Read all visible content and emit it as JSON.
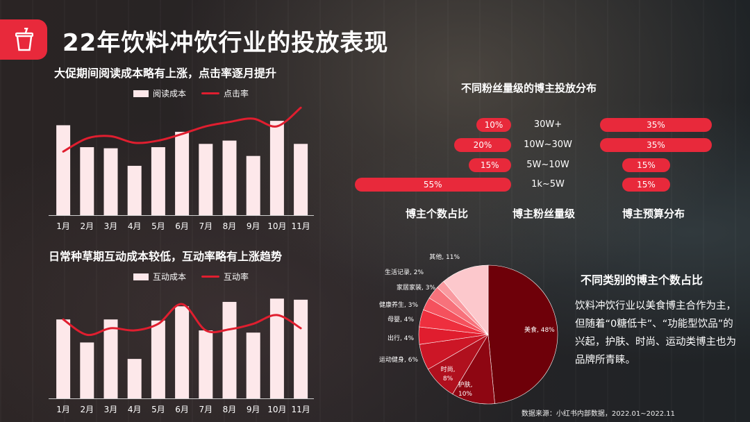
{
  "title": "22年饮料冲饮行业的投放表现",
  "top_chart_title": "大促期间阅读成本略有上涨，点击率逐月提升",
  "bottom_chart_title": "日常种草期互动成本较低，互动率略有上涨趋势",
  "dist_title": "不同粉丝量级的博主投放分布",
  "pie_title": "不同类别的博主个数占比",
  "colors": {
    "accent": "#e8293b",
    "bar": "#fde8ea",
    "line": "#e01e2f",
    "pie_dark": "#6e0009"
  },
  "icons": {
    "logo": "cup-icon"
  },
  "chart_data": [
    {
      "type": "bar",
      "categories": [
        "1月",
        "2月",
        "3月",
        "4月",
        "5月",
        "6月",
        "7月",
        "8月",
        "9月",
        "10月",
        "11月"
      ],
      "series": [
        {
          "name": "阅读成本",
          "type": "bar",
          "values": [
            82,
            62,
            61,
            45,
            62,
            76,
            65,
            68,
            54,
            86,
            65
          ]
        },
        {
          "name": "点击率",
          "type": "line",
          "values": [
            58,
            70,
            72,
            66,
            68,
            74,
            81,
            85,
            88,
            81,
            98
          ]
        }
      ],
      "ylim": [
        0,
        100
      ]
    },
    {
      "type": "bar",
      "categories": [
        "1月",
        "2月",
        "3月",
        "4月",
        "5月",
        "6月",
        "7月",
        "8月",
        "9月",
        "10月",
        "11月"
      ],
      "series": [
        {
          "name": "互动成本",
          "type": "bar",
          "values": [
            72,
            51,
            72,
            36,
            71,
            84,
            62,
            88,
            60,
            91,
            90
          ]
        },
        {
          "name": "互动率",
          "type": "line",
          "values": [
            72,
            58,
            64,
            62,
            68,
            86,
            62,
            63,
            68,
            76,
            64
          ]
        }
      ],
      "ylim": [
        0,
        100
      ]
    },
    {
      "type": "table",
      "tiers": [
        "30W+",
        "10W~30W",
        "5W~10W",
        "1k~5W"
      ],
      "count_share": [
        "10%",
        "20%",
        "15%",
        "55%"
      ],
      "count_values": [
        10,
        20,
        15,
        55
      ],
      "budget_share": [
        "35%",
        "35%",
        "15%",
        "15%"
      ],
      "budget_values": [
        35,
        35,
        15,
        15
      ],
      "column_labels": [
        "博主个数占比",
        "博主粉丝量级",
        "博主预算分布"
      ]
    },
    {
      "type": "pie",
      "slices": [
        {
          "label": "美食, 48%",
          "value": 48,
          "color": "#6e0009"
        },
        {
          "label": "护肤,\n10%",
          "value": 10,
          "color": "#8e0612"
        },
        {
          "label": "时尚,\n8%",
          "value": 8,
          "color": "#b0101e"
        },
        {
          "label": "运动健身, 6%",
          "value": 6,
          "color": "#cc1626"
        },
        {
          "label": "出行, 4%",
          "value": 4,
          "color": "#e01d2e"
        },
        {
          "label": "母婴, 4%",
          "value": 4,
          "color": "#ee2f3e"
        },
        {
          "label": "健康养生, 3%",
          "value": 3,
          "color": "#f5515d"
        },
        {
          "label": "家居家装, 3%",
          "value": 3,
          "color": "#f7727b"
        },
        {
          "label": "生活记录, 2%",
          "value": 2,
          "color": "#f99aa0"
        },
        {
          "label": "其他, 11%",
          "value": 11,
          "color": "#fcc8cc"
        }
      ]
    }
  ],
  "paragraph": "饮料冲饮行业以美食博主合作为主，但随着“0糖低卡”、“功能型饮品”的兴起，护肤、时尚、运动类博主也为品牌所青睐。",
  "source": "数据来源：小红书内部数据，2022.01~2022.11"
}
